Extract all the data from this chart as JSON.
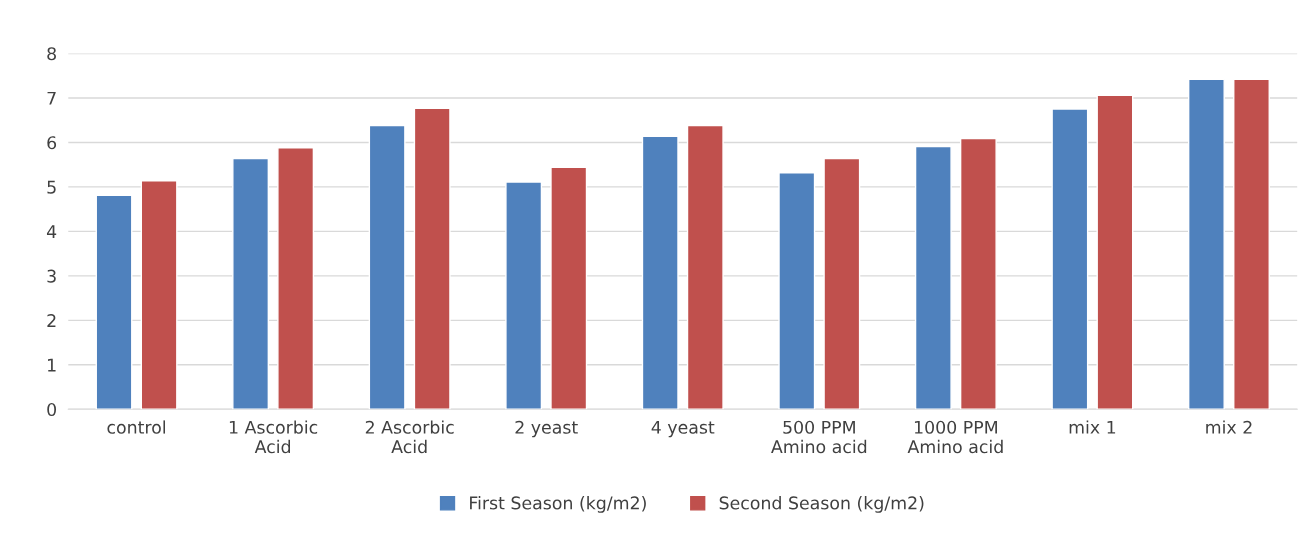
{
  "chart_data": {
    "type": "bar",
    "categories": [
      "control",
      "1 Ascorbic\nAcid",
      "2 Ascorbic\nAcid",
      "2 yeast",
      "4 yeast",
      "500 PPM\nAmino acid",
      "1000 PPM\nAmino acid",
      "mix 1",
      "mix 2"
    ],
    "series": [
      {
        "name": "First Season (kg/m2)",
        "color": "#4f81bd",
        "values": [
          4.81,
          5.64,
          6.38,
          5.11,
          6.14,
          5.32,
          5.91,
          6.75,
          7.42
        ]
      },
      {
        "name": "Second Season (kg/m2)",
        "color": "#c0504d",
        "values": [
          5.14,
          5.88,
          6.77,
          5.44,
          6.38,
          5.64,
          6.09,
          7.06,
          7.42
        ]
      }
    ],
    "ylim": [
      0,
      8
    ],
    "yticks": [
      0,
      1,
      2,
      3,
      4,
      5,
      6,
      7,
      8
    ],
    "grid": "y",
    "legend": "bottom"
  }
}
